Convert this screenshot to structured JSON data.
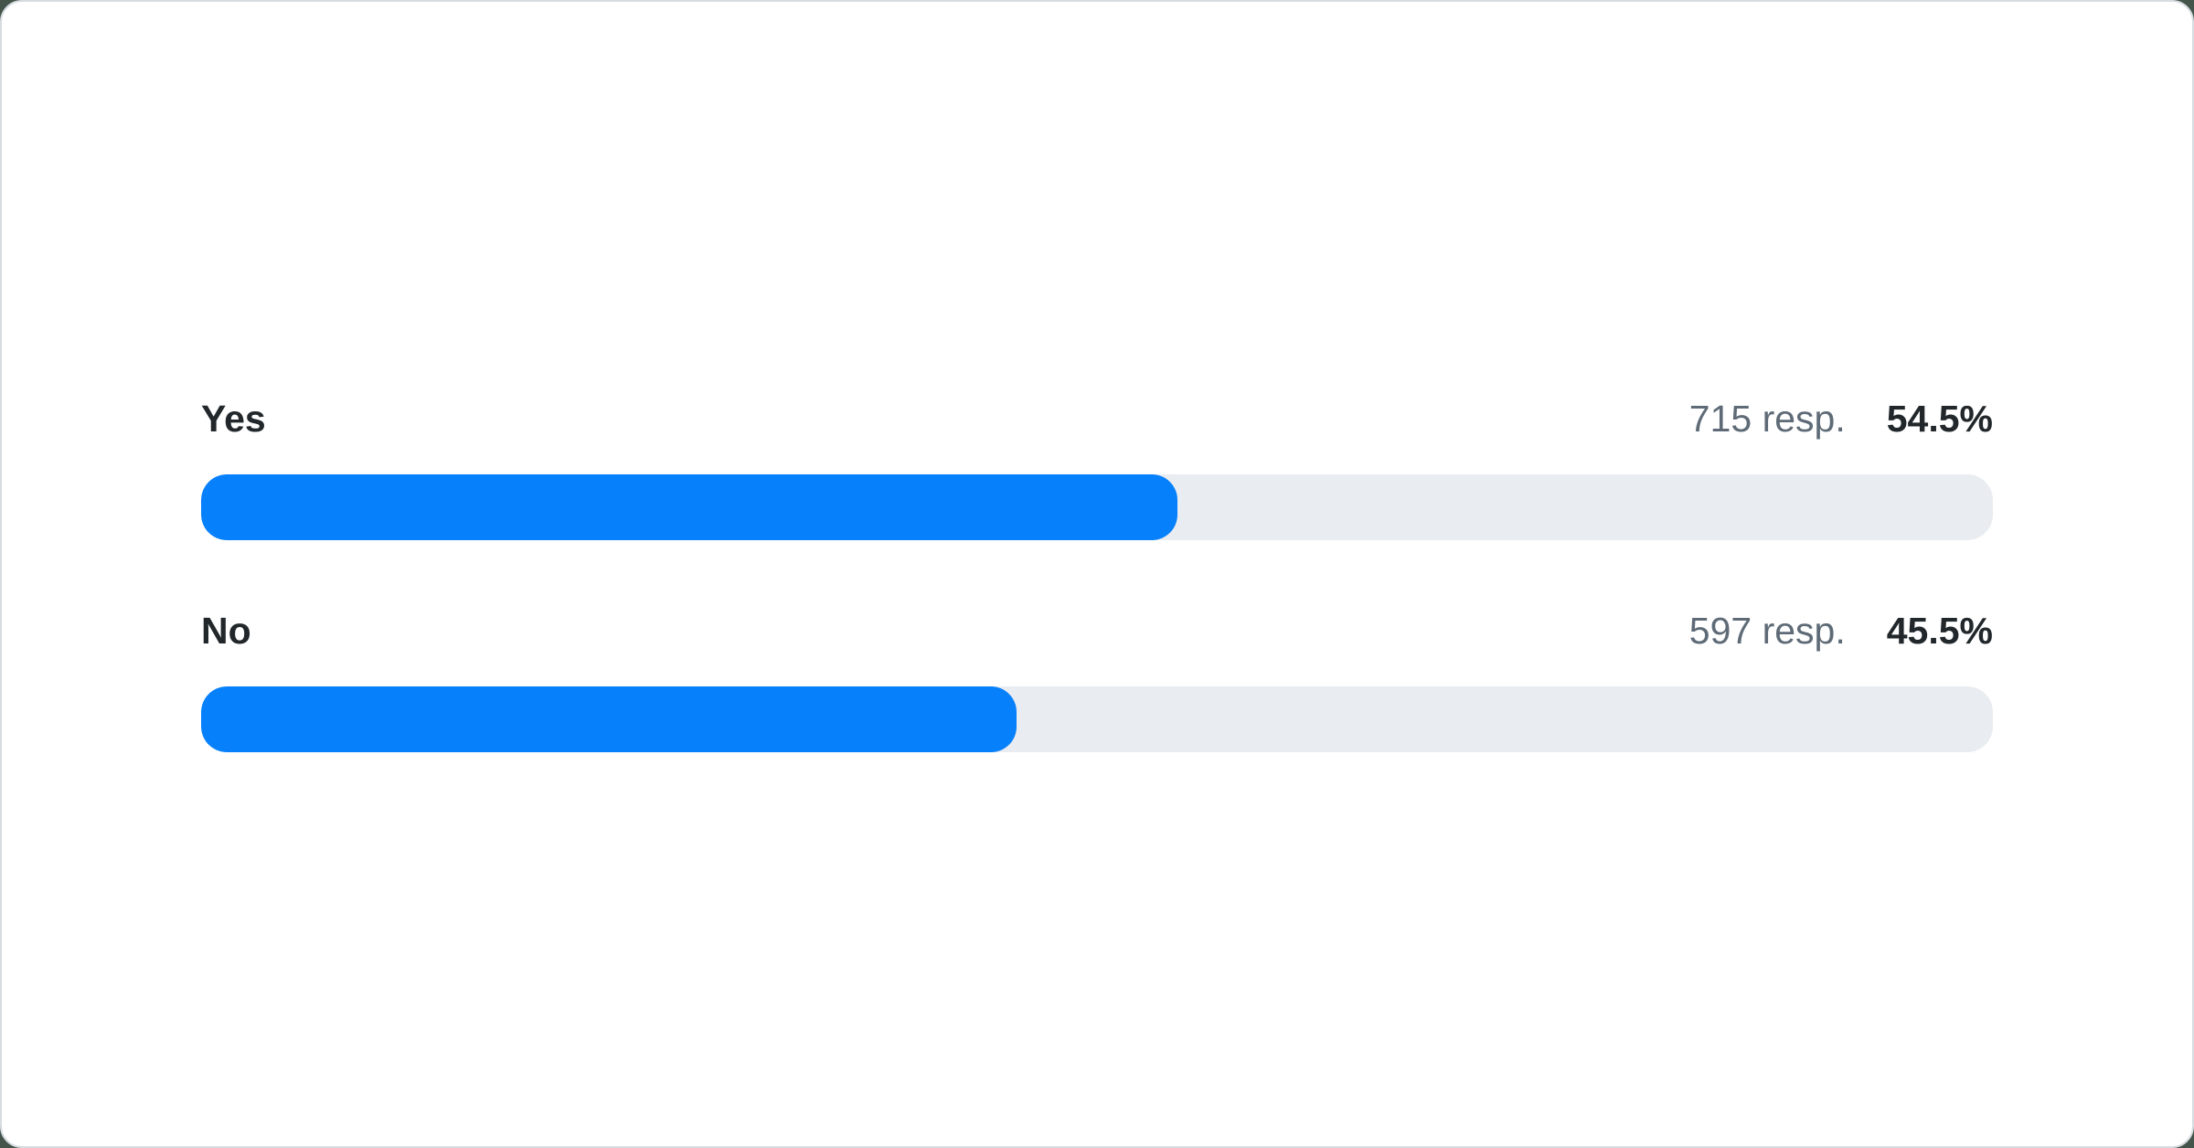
{
  "colors": {
    "page_background": "#44544a",
    "card_background": "#ffffff",
    "card_border": "#d7dce1",
    "bar_fill": "#0680fb",
    "bar_track": "#e9ecf0",
    "label_text": "#21272a",
    "secondary_text": "#5e6b77"
  },
  "poll": {
    "options": [
      {
        "label": "Yes",
        "responses_text": "715 resp.",
        "percent_text": "54.5%",
        "percent_value": 54.5
      },
      {
        "label": "No",
        "responses_text": "597 resp.",
        "percent_text": "45.5%",
        "percent_value": 45.5
      }
    ]
  },
  "chart_data": {
    "type": "bar",
    "orientation": "horizontal",
    "title": "",
    "categories": [
      "Yes",
      "No"
    ],
    "values": [
      715,
      597
    ],
    "percents": [
      54.5,
      45.5
    ],
    "value_suffix": " resp.",
    "xlim_percent": [
      0,
      100
    ],
    "grid": false,
    "legend": "none",
    "bar_color": "#0680fb",
    "track_color": "#e9ecf0"
  }
}
